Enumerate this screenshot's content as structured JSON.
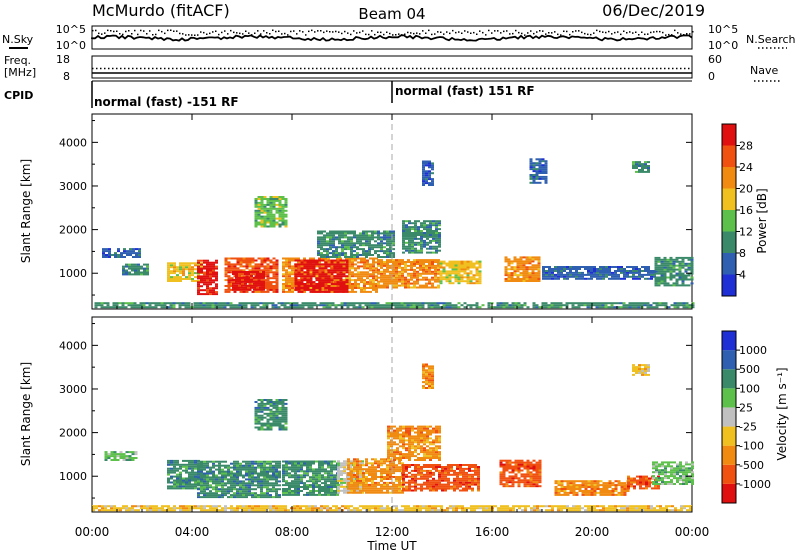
{
  "header": {
    "site": "McMurdo (fitACF)",
    "beam": "Beam 04",
    "date": "06/Dec/2019"
  },
  "top_panels": {
    "nsky": {
      "label": "N.Sky",
      "tick_top": "10^5",
      "tick_bottom": "10^0"
    },
    "nsearch": {
      "label": "N.Search",
      "tick_top": "10^5",
      "tick_bottom": "10^0"
    },
    "freq": {
      "label_line1": "Freq.",
      "label_line2": "[MHz]",
      "tick_top": "18",
      "tick_bottom": "8"
    },
    "nave": {
      "label": "Nave",
      "tick_top": "60",
      "tick_bottom": "0"
    },
    "cpid": {
      "label": "CPID",
      "segments": [
        {
          "text": "normal (fast) -151 RF",
          "start_hour": 0
        },
        {
          "text": "normal (fast) 151 RF",
          "start_hour": 12
        }
      ]
    }
  },
  "colors": {
    "power": [
      "#1f2fd6",
      "#2f5fb0",
      "#3a8a6a",
      "#5cc04a",
      "#f0c020",
      "#f08a10",
      "#f05010",
      "#e01010"
    ],
    "velocity": [
      "#e01010",
      "#f05010",
      "#f08a10",
      "#f0c020",
      "#c0c0c0",
      "#5cc04a",
      "#3a8a6a",
      "#2f5fb0",
      "#1f2fd6"
    ]
  },
  "chart_data": [
    {
      "type": "heatmap",
      "panel": "power",
      "ylabel": "Slant Range [km]",
      "xlabel": "",
      "x_ticks": [
        "00:00",
        "04:00",
        "08:00",
        "12:00",
        "16:00",
        "20:00",
        "00:00"
      ],
      "xlim_hours": [
        0,
        24
      ],
      "y_ticks": [
        1000,
        2000,
        3000,
        4000
      ],
      "ylim": [
        180,
        4650
      ],
      "colorbar": {
        "label": "Power [dB]",
        "ticks": [
          "4",
          "8",
          "12",
          "16",
          "20",
          "24",
          "28"
        ],
        "range": [
          0,
          32
        ]
      },
      "echo_regions": [
        {
          "t0": 0.1,
          "t1": 24,
          "r0": 200,
          "r1": 330,
          "level": 2
        },
        {
          "t0": 0.4,
          "t1": 1.9,
          "r0": 1350,
          "r1": 1550,
          "level": 1
        },
        {
          "t0": 1.2,
          "t1": 2.2,
          "r0": 950,
          "r1": 1200,
          "level": 2
        },
        {
          "t0": 3.0,
          "t1": 4.4,
          "r0": 800,
          "r1": 1250,
          "level": 4
        },
        {
          "t0": 4.2,
          "t1": 5.0,
          "r0": 500,
          "r1": 1300,
          "level": 7
        },
        {
          "t0": 5.3,
          "t1": 7.4,
          "r0": 550,
          "r1": 1350,
          "level": 6
        },
        {
          "t0": 5.6,
          "t1": 6.9,
          "r0": 600,
          "r1": 1050,
          "level": 7
        },
        {
          "t0": 6.5,
          "t1": 7.8,
          "r0": 2050,
          "r1": 2750,
          "level": 3
        },
        {
          "t0": 7.6,
          "t1": 11.4,
          "r0": 550,
          "r1": 1350,
          "level": 5
        },
        {
          "t0": 8.1,
          "t1": 10.2,
          "r0": 550,
          "r1": 1300,
          "level": 7
        },
        {
          "t0": 9.0,
          "t1": 12.0,
          "r0": 1350,
          "r1": 1950,
          "level": 2
        },
        {
          "t0": 11.4,
          "t1": 13.8,
          "r0": 650,
          "r1": 1300,
          "level": 5
        },
        {
          "t0": 12.4,
          "t1": 13.9,
          "r0": 1450,
          "r1": 2200,
          "level": 2
        },
        {
          "t0": 13.9,
          "t1": 15.5,
          "r0": 750,
          "r1": 1250,
          "level": 4
        },
        {
          "t0": 16.5,
          "t1": 17.9,
          "r0": 800,
          "r1": 1350,
          "level": 5
        },
        {
          "t0": 18.0,
          "t1": 22.5,
          "r0": 850,
          "r1": 1150,
          "level": 1
        },
        {
          "t0": 22.5,
          "t1": 24,
          "r0": 700,
          "r1": 1350,
          "level": 2
        },
        {
          "t0": 13.2,
          "t1": 13.6,
          "r0": 3000,
          "r1": 3550,
          "level": 1
        },
        {
          "t0": 17.5,
          "t1": 18.2,
          "r0": 3050,
          "r1": 3600,
          "level": 1
        },
        {
          "t0": 21.6,
          "t1": 22.3,
          "r0": 3300,
          "r1": 3550,
          "level": 2
        }
      ]
    },
    {
      "type": "heatmap",
      "panel": "velocity",
      "ylabel": "Slant Range [km]",
      "xlabel": "Time UT",
      "x_ticks": [
        "00:00",
        "04:00",
        "08:00",
        "12:00",
        "16:00",
        "20:00",
        "00:00"
      ],
      "xlim_hours": [
        0,
        24
      ],
      "y_ticks": [
        1000,
        2000,
        3000,
        4000
      ],
      "ylim": [
        180,
        4650
      ],
      "colorbar": {
        "label": "Velocity [m s⁻¹]",
        "ticks": [
          "-1000",
          "-500",
          "-100",
          "-25",
          "25",
          "100",
          "500",
          "1000"
        ],
        "range": [
          -1000,
          1000
        ]
      },
      "echo_regions": [
        {
          "t0": 0.0,
          "t1": 24,
          "r0": 200,
          "r1": 320,
          "level": 3
        },
        {
          "t0": 0.5,
          "t1": 1.8,
          "r0": 1350,
          "r1": 1550,
          "level": 5
        },
        {
          "t0": 3.0,
          "t1": 4.4,
          "r0": 700,
          "r1": 1350,
          "level": 6
        },
        {
          "t0": 4.2,
          "t1": 7.5,
          "r0": 500,
          "r1": 1350,
          "level": 6
        },
        {
          "t0": 6.5,
          "t1": 7.8,
          "r0": 2050,
          "r1": 2750,
          "level": 6
        },
        {
          "t0": 7.6,
          "t1": 9.8,
          "r0": 550,
          "r1": 1350,
          "level": 6
        },
        {
          "t0": 9.8,
          "t1": 10.8,
          "r0": 600,
          "r1": 1350,
          "level": 4
        },
        {
          "t0": 10.2,
          "t1": 12.4,
          "r0": 600,
          "r1": 1400,
          "level": 2
        },
        {
          "t0": 11.8,
          "t1": 13.9,
          "r0": 1350,
          "r1": 2150,
          "level": 2
        },
        {
          "t0": 12.4,
          "t1": 15.5,
          "r0": 650,
          "r1": 1250,
          "level": 1
        },
        {
          "t0": 16.3,
          "t1": 17.9,
          "r0": 750,
          "r1": 1350,
          "level": 1
        },
        {
          "t0": 18.5,
          "t1": 21.5,
          "r0": 550,
          "r1": 900,
          "level": 2
        },
        {
          "t0": 21.4,
          "t1": 22.7,
          "r0": 700,
          "r1": 1000,
          "level": 1
        },
        {
          "t0": 22.4,
          "t1": 24,
          "r0": 800,
          "r1": 1300,
          "level": 5
        },
        {
          "t0": 13.2,
          "t1": 13.6,
          "r0": 3000,
          "r1": 3550,
          "level": 2
        },
        {
          "t0": 21.6,
          "t1": 22.3,
          "r0": 3300,
          "r1": 3550,
          "level": 3
        }
      ]
    }
  ]
}
